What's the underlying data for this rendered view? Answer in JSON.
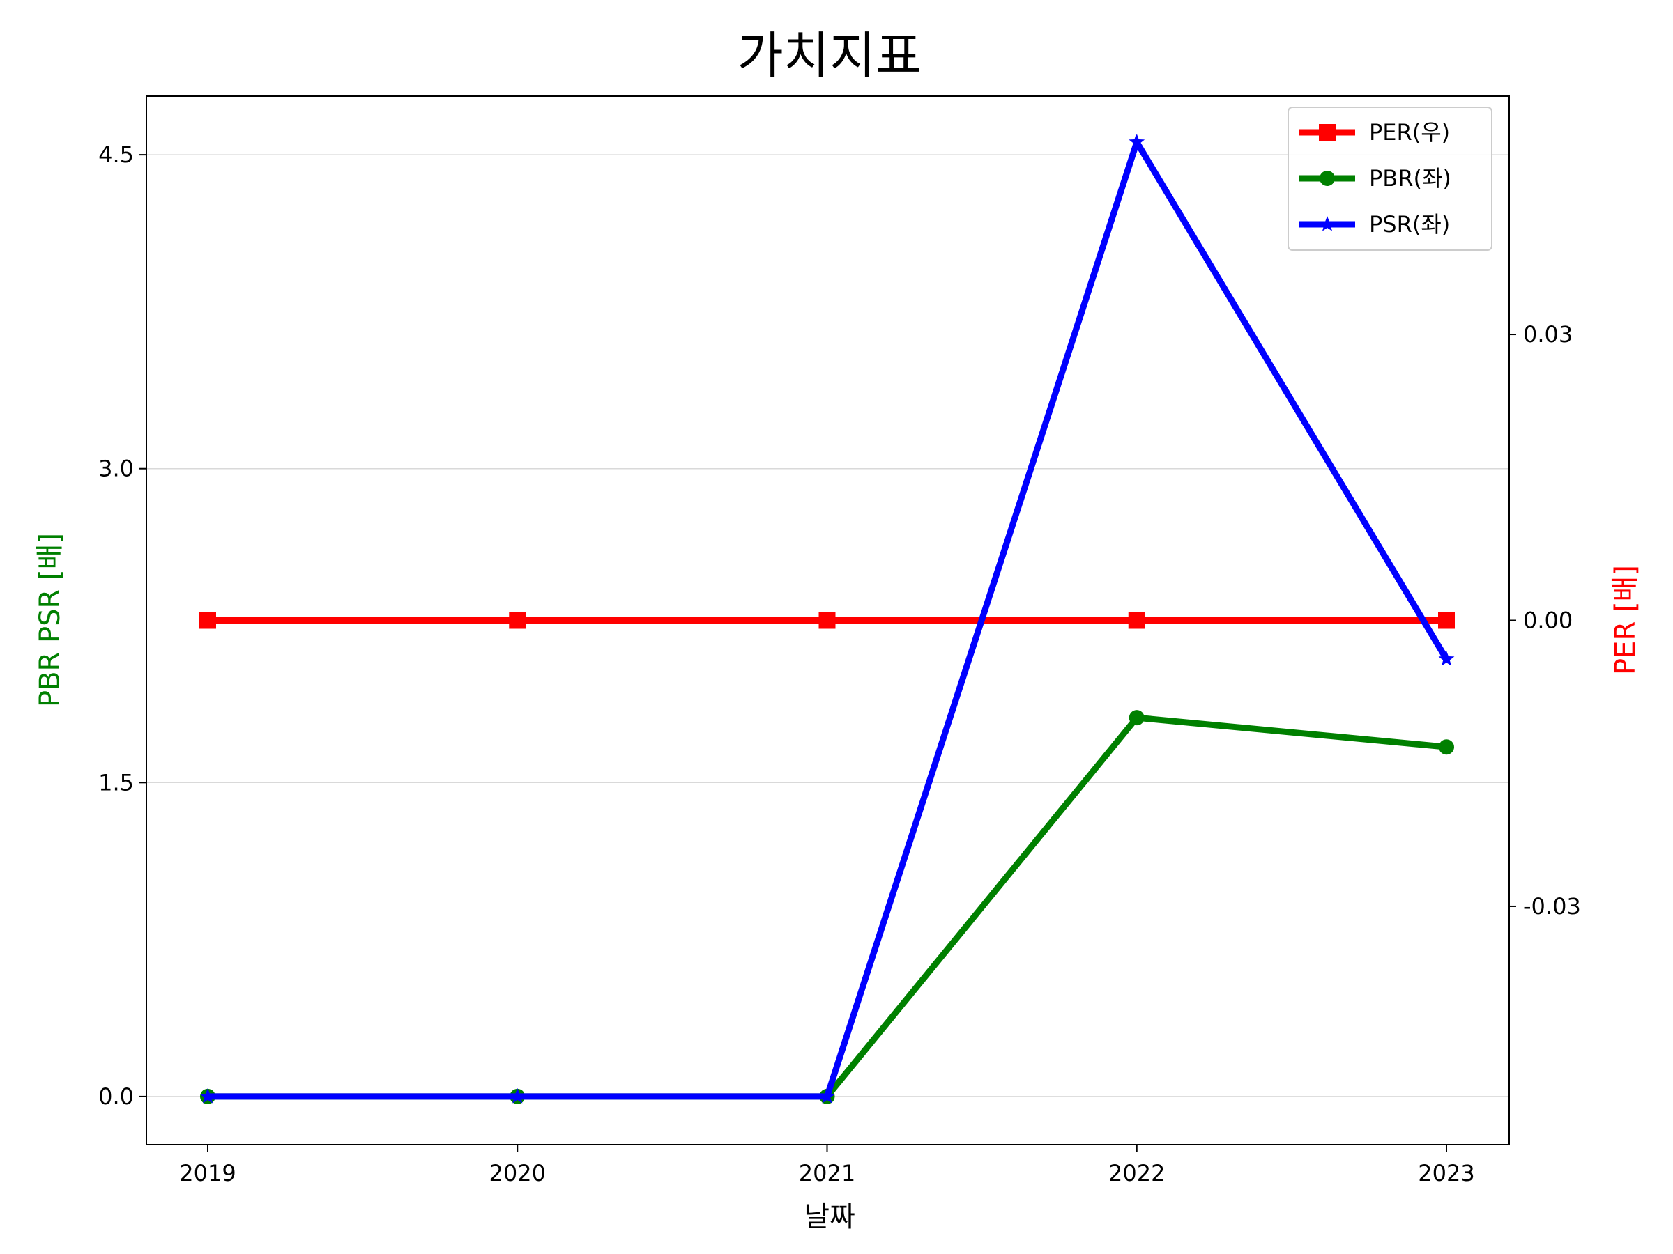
{
  "chart_data": {
    "type": "line",
    "title": "가치지표",
    "xlabel": "날짜",
    "ylabel_left": "PBR PSR [배]",
    "ylabel_right": "PER [배]",
    "categories": [
      "2019",
      "2020",
      "2021",
      "2022",
      "2023"
    ],
    "y_left_ticks": [
      "0.0",
      "1.5",
      "3.0",
      "4.5"
    ],
    "y_left_range": [
      -0.23,
      4.78
    ],
    "y_right_ticks": [
      "-0.03",
      "0.00",
      "0.03"
    ],
    "y_right_range": [
      -0.055,
      0.055
    ],
    "grid": "horizontal, left axis",
    "legend_position": "top-right",
    "series": [
      {
        "name": "PER(우)",
        "axis": "right",
        "color": "#ff0000",
        "marker": "square",
        "values": [
          0,
          0,
          0,
          0,
          0
        ]
      },
      {
        "name": "PBR(좌)",
        "axis": "left",
        "color": "#008000",
        "marker": "circle",
        "values": [
          0,
          0,
          0,
          1.81,
          1.67
        ]
      },
      {
        "name": "PSR(좌)",
        "axis": "left",
        "color": "#0000ff",
        "marker": "star",
        "values": [
          0,
          0,
          0,
          4.56,
          2.09
        ]
      }
    ],
    "colors": {
      "left_axis_label": "#008000",
      "right_axis_label": "#ff0000",
      "grid": "#d9d9d9"
    }
  }
}
